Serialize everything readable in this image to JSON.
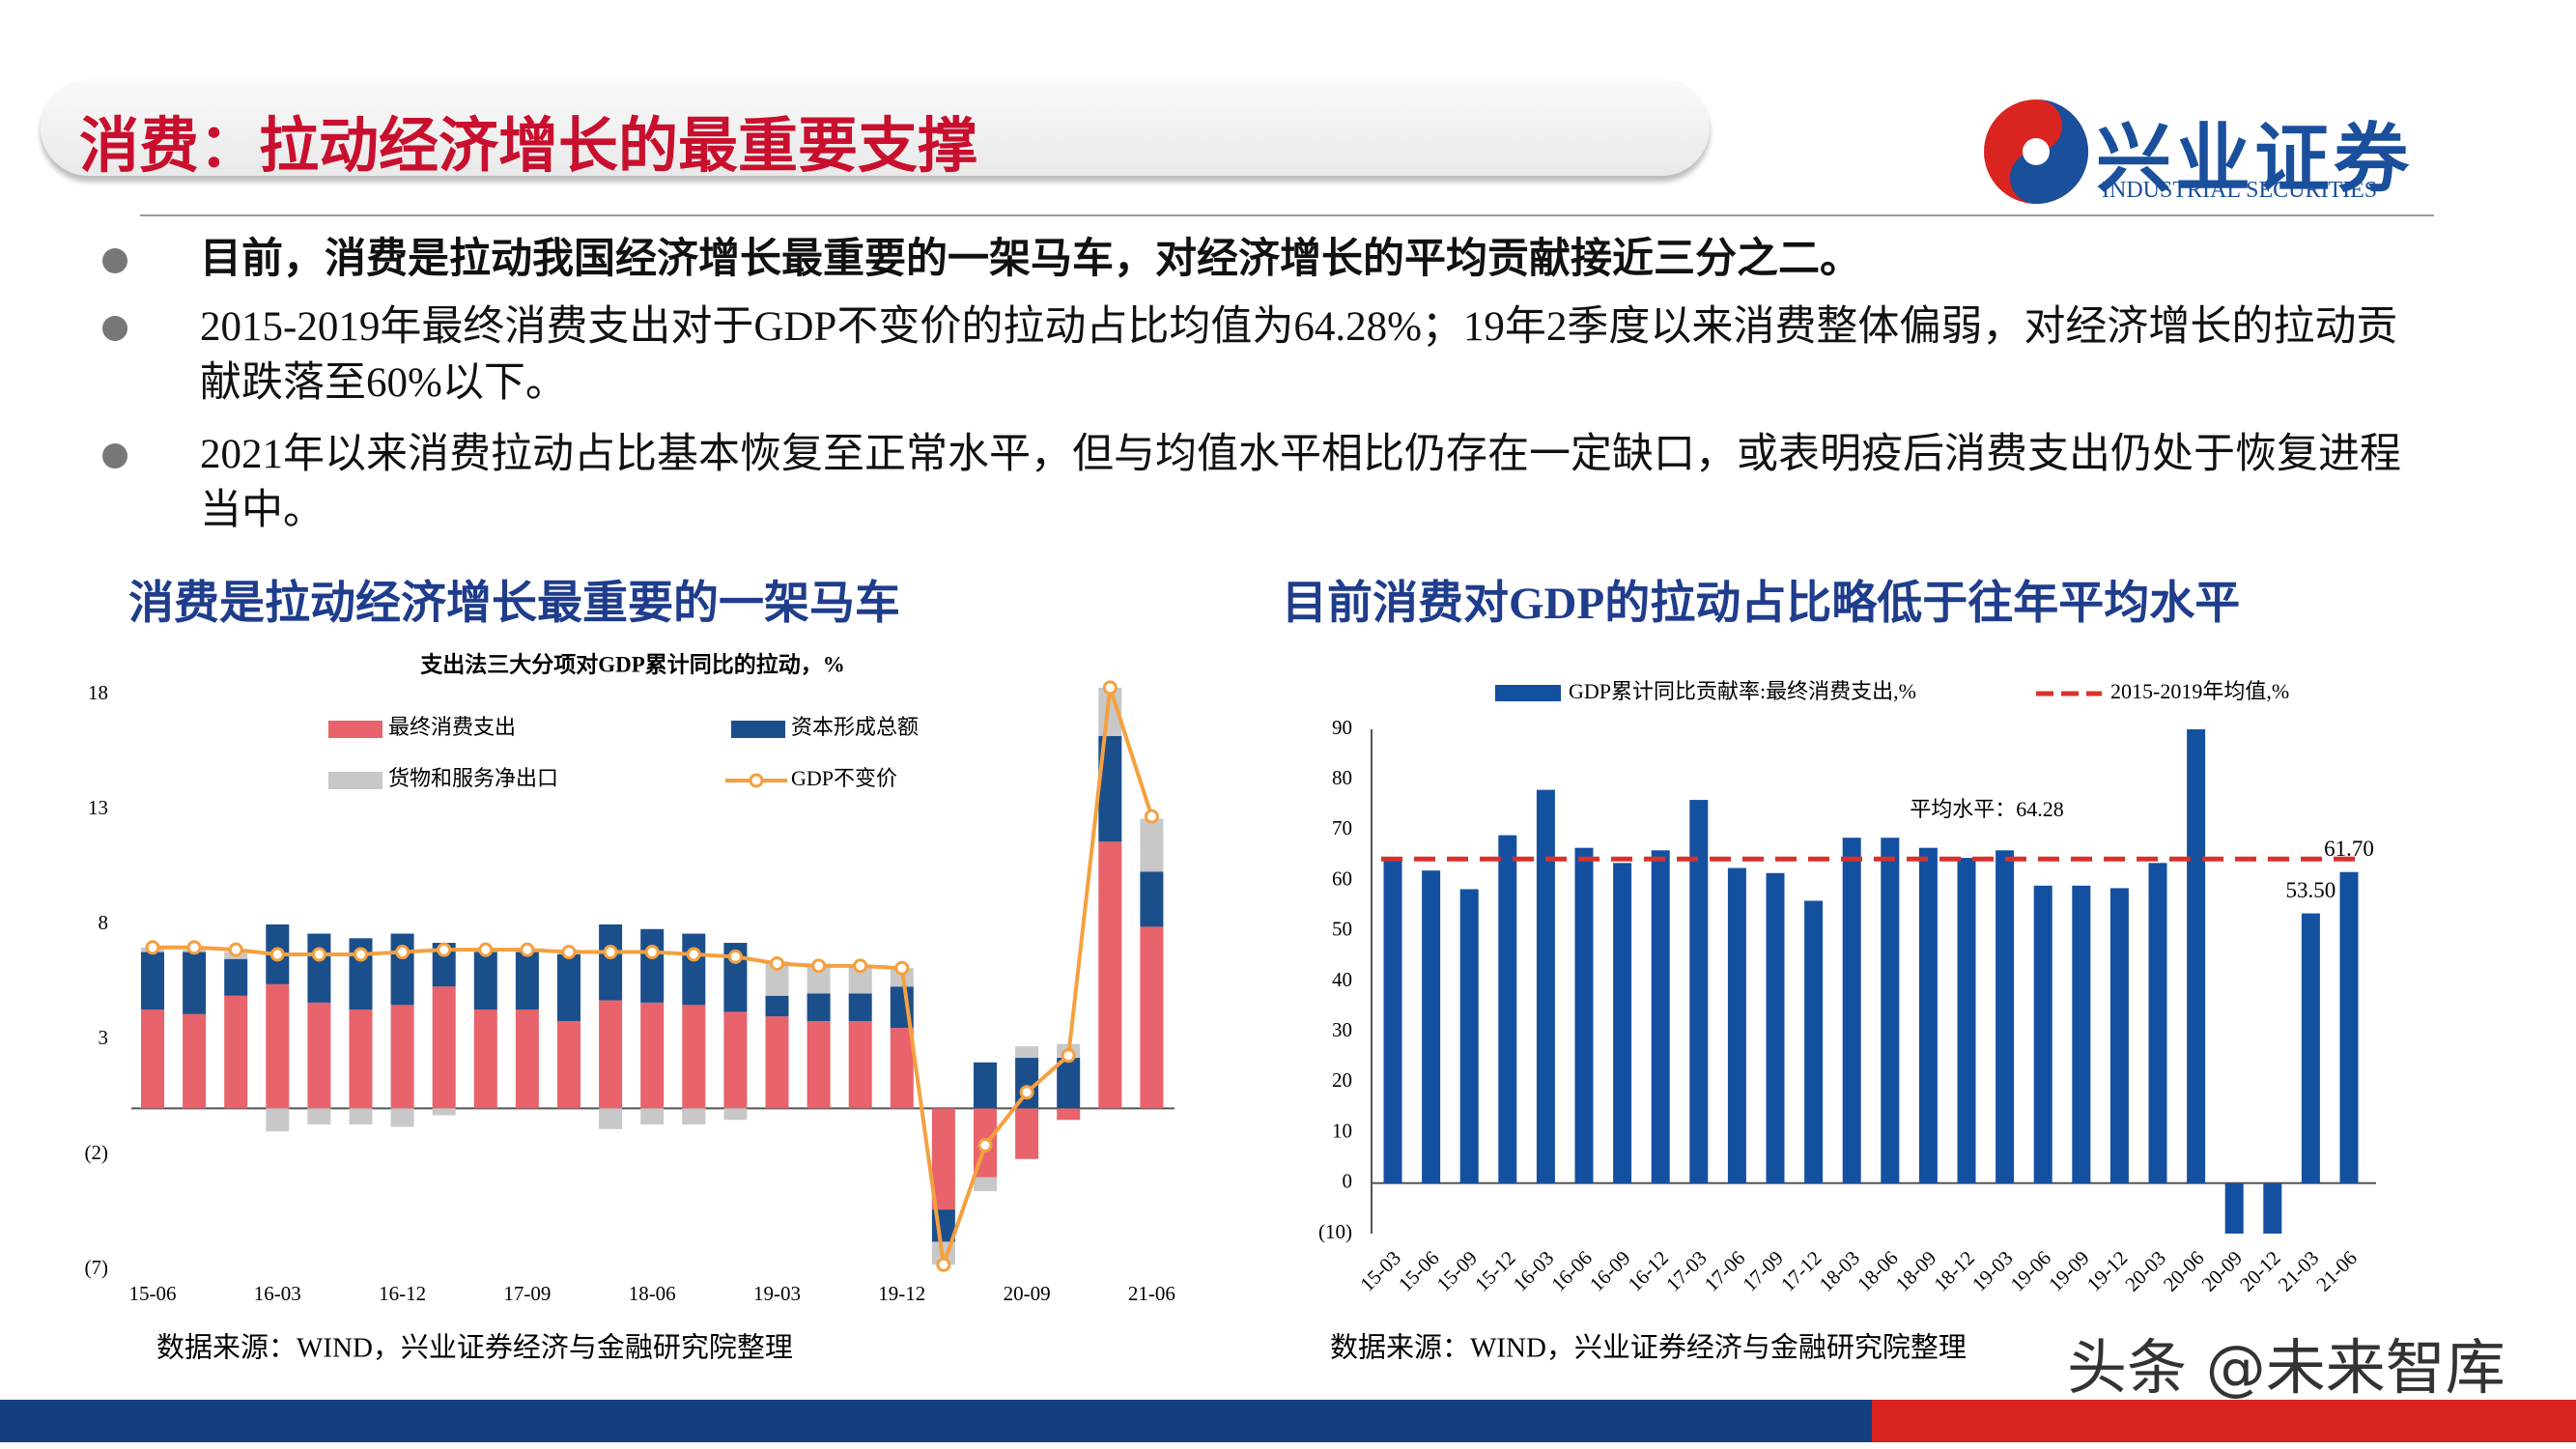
{
  "header": {
    "title": "消费：拉动经济增长的最重要支撑",
    "logo_name": "兴业证券",
    "logo_subtitle": "INDUSTRIAL SECURITIES"
  },
  "bullets": [
    {
      "text": "目前，消费是拉动我国经济增长最重要的一架马车，对经济增长的平均贡献接近三分之二。",
      "bold": true
    },
    {
      "text": "2015-2019年最终消费支出对于GDP不变价的拉动占比均值为64.28%；19年2季度以来消费整体偏弱，对经济增长的拉动贡献跌落至60%以下。",
      "bold": false
    },
    {
      "text": "2021年以来消费拉动占比基本恢复至正常水平，但与均值水平相比仍存在一定缺口，或表明疫后消费支出仍处于恢复进程当中。",
      "bold": false
    }
  ],
  "watermark": "头条 @未来智库",
  "chart_data": [
    {
      "type": "bar",
      "stacked": true,
      "heading": "消费是拉动经济增长最重要的一架马车",
      "title": "支出法三大分项对GDP累计同比的拉动，%",
      "source": "数据来源：WIND，兴业证券经济与金融研究院整理",
      "categories": [
        "15-06",
        null,
        null,
        "16-03",
        null,
        null,
        "16-12",
        null,
        null,
        "17-09",
        null,
        null,
        "18-06",
        null,
        null,
        "19-03",
        null,
        null,
        "19-12",
        null,
        null,
        "20-09",
        null,
        null,
        "21-06"
      ],
      "series": [
        {
          "name": "最终消费支出",
          "color": "#e8636b",
          "values": [
            4.3,
            4.1,
            4.9,
            5.4,
            4.6,
            4.3,
            4.5,
            5.3,
            4.3,
            4.3,
            3.8,
            4.7,
            4.6,
            4.5,
            4.2,
            4.0,
            3.8,
            3.8,
            3.5,
            -4.4,
            -3.0,
            -2.2,
            -0.5,
            11.6,
            7.9
          ]
        },
        {
          "name": "资本形成总额",
          "color": "#1a4f8b",
          "values": [
            2.5,
            2.7,
            1.6,
            2.6,
            3.0,
            3.1,
            3.1,
            1.9,
            2.5,
            2.5,
            2.9,
            3.3,
            3.2,
            3.1,
            3.0,
            0.9,
            1.2,
            1.2,
            1.8,
            -1.4,
            2.0,
            2.2,
            2.2,
            4.6,
            2.4
          ]
        },
        {
          "name": "货物和服务净出口",
          "color": "#c8c8c8",
          "values": [
            0.2,
            0.1,
            0.3,
            -1.0,
            -0.7,
            -0.7,
            -0.8,
            -0.3,
            0.1,
            0.1,
            0.2,
            -0.9,
            -0.7,
            -0.7,
            -0.5,
            1.5,
            1.3,
            1.2,
            0.8,
            -1.0,
            -0.6,
            0.5,
            0.6,
            2.1,
            2.3
          ]
        },
        {
          "name": "GDP不变价",
          "color": "#f5a040",
          "type": "line",
          "values": [
            7.0,
            7.0,
            6.9,
            6.7,
            6.7,
            6.7,
            6.8,
            6.9,
            6.9,
            6.9,
            6.8,
            6.8,
            6.8,
            6.7,
            6.6,
            6.3,
            6.2,
            6.2,
            6.1,
            -6.8,
            -1.6,
            0.7,
            2.3,
            18.3,
            12.7
          ]
        }
      ],
      "ylim": [
        -7,
        18
      ],
      "yticks": [
        {
          "value": -7,
          "label": "(7)"
        },
        {
          "value": -2,
          "label": "(2)"
        },
        3,
        8,
        13,
        18
      ],
      "grid": false
    },
    {
      "type": "bar",
      "stacked": false,
      "heading": "目前消费对GDP的拉动占比略低于往年平均水平",
      "source": "数据来源：WIND，兴业证券经济与金融研究院整理",
      "categories": [
        "15-03",
        "15-06",
        "15-09",
        "15-12",
        "16-03",
        "16-06",
        "16-09",
        "16-12",
        "17-03",
        "17-06",
        "17-09",
        "17-12",
        "18-03",
        "18-06",
        "18-09",
        "18-12",
        "19-03",
        "19-06",
        "19-09",
        "19-12",
        "20-03",
        "20-06",
        "20-09",
        "20-12",
        "21-03",
        "21-06"
      ],
      "series": [
        {
          "name": "GDP累计同比贡献率:最终消费支出,%",
          "color": "#1450a0",
          "values": [
            64,
            62,
            58.3,
            69,
            78,
            66.5,
            63.5,
            66,
            76,
            62.5,
            61.5,
            56,
            68.5,
            68.5,
            66.5,
            64.5,
            66,
            59,
            59,
            58.5,
            63.5,
            90,
            -10,
            -10,
            53.5,
            61.7
          ],
          "value_labels": [
            null,
            null,
            null,
            null,
            null,
            null,
            null,
            null,
            null,
            null,
            null,
            null,
            null,
            null,
            null,
            null,
            null,
            null,
            null,
            null,
            null,
            null,
            null,
            null,
            "53.50",
            "61.70"
          ]
        }
      ],
      "reference_line": {
        "name": "2015-2019年均值,%",
        "value": 64.28,
        "color": "#d9312b"
      },
      "annotation": "平均水平：64.28",
      "ylim": [
        -10,
        90
      ],
      "yticks": [
        {
          "value": -10,
          "label": "(10)"
        },
        0,
        10,
        20,
        30,
        40,
        50,
        60,
        70,
        80,
        90
      ],
      "grid": false
    }
  ]
}
